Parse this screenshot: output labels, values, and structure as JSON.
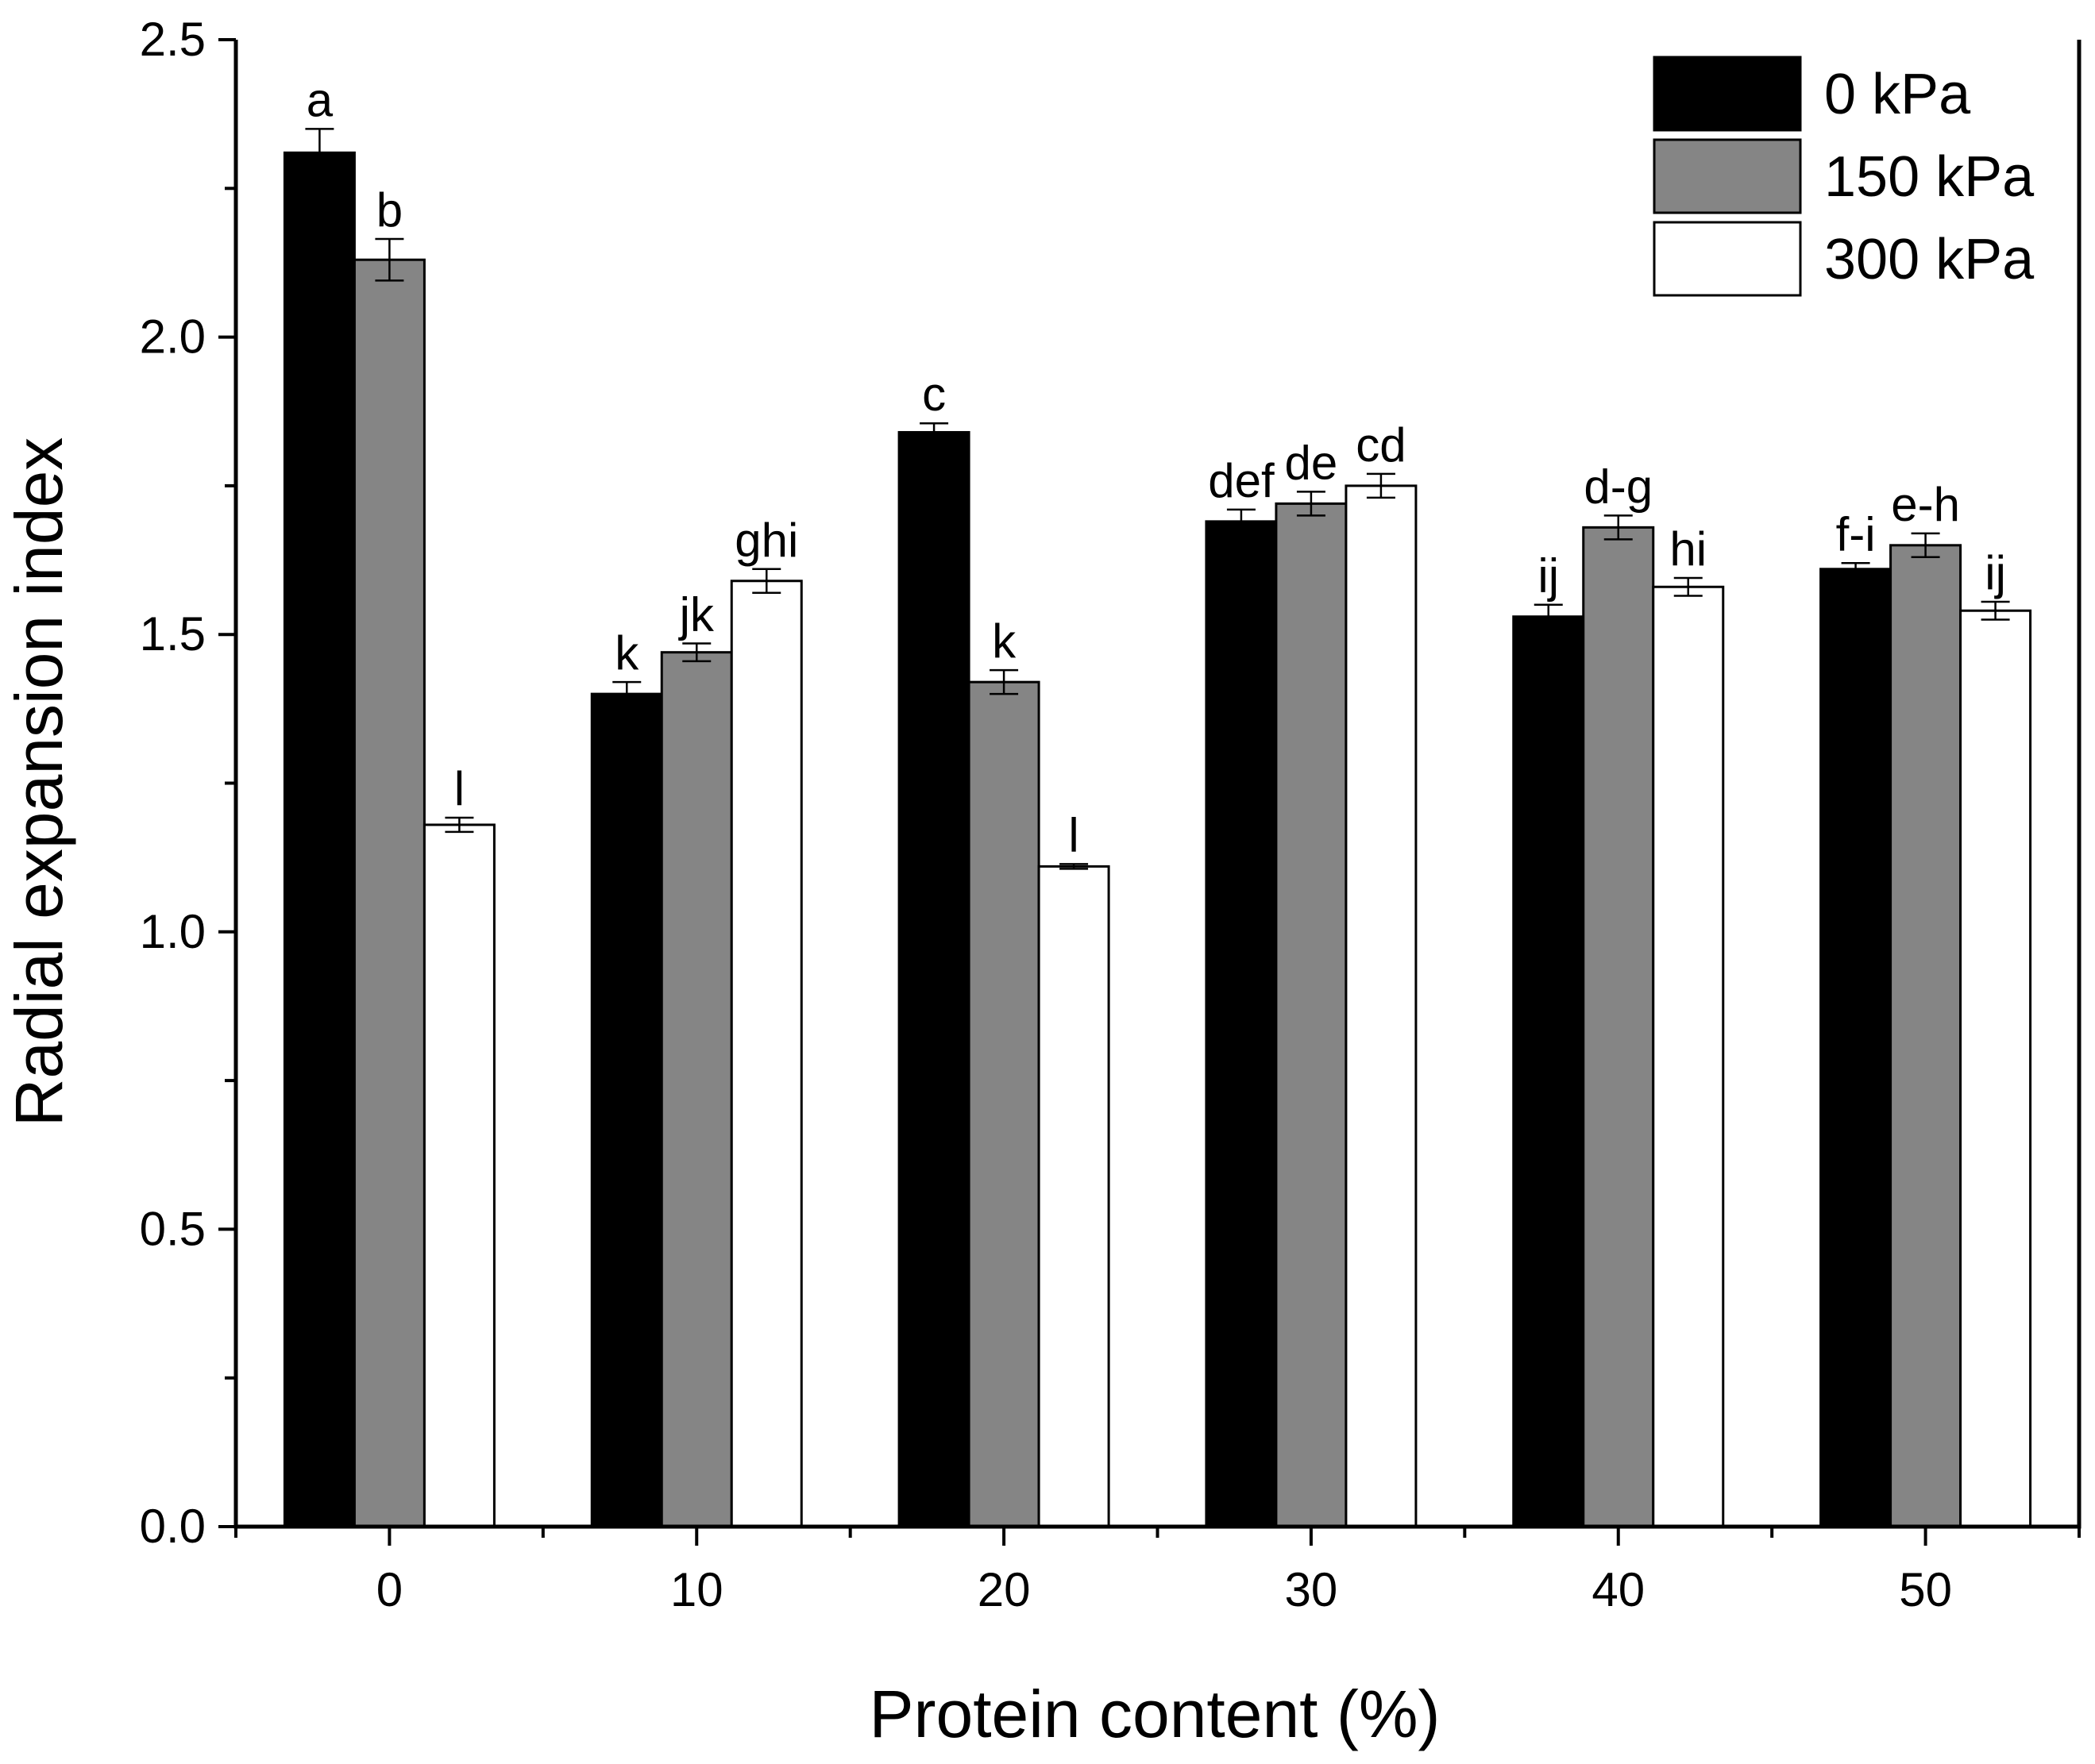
{
  "chart_data": {
    "type": "bar",
    "xlabel": "Protein content (%)",
    "ylabel": "Radial expansion index",
    "categories": [
      "0",
      "10",
      "20",
      "30",
      "40",
      "50"
    ],
    "ylim": [
      0,
      2.5
    ],
    "yticks": [
      "0.0",
      "0.5",
      "1.0",
      "1.5",
      "2.0",
      "2.5"
    ],
    "legend_position": "top-right",
    "series": [
      {
        "name": "0 kPa",
        "color": "#000000",
        "values": [
          2.31,
          1.4,
          1.84,
          1.69,
          1.53,
          1.61
        ],
        "errors": [
          0.04,
          0.02,
          0.015,
          0.02,
          0.02,
          0.01
        ],
        "labels": [
          "a",
          "k",
          "c",
          "def",
          "ij",
          "f-i"
        ]
      },
      {
        "name": "150 kPa",
        "color": "#858585",
        "values": [
          2.13,
          1.47,
          1.42,
          1.72,
          1.68,
          1.65
        ],
        "errors": [
          0.035,
          0.015,
          0.02,
          0.02,
          0.02,
          0.02
        ],
        "labels": [
          "b",
          "jk",
          "k",
          "de",
          "d-g",
          "e-h"
        ]
      },
      {
        "name": "300 kPa",
        "color": "#ffffff",
        "values": [
          1.18,
          1.59,
          1.11,
          1.75,
          1.58,
          1.54
        ],
        "errors": [
          0.012,
          0.02,
          0.004,
          0.02,
          0.015,
          0.015
        ],
        "labels": [
          "l",
          "ghi",
          "l",
          "cd",
          "hi",
          "ij"
        ]
      }
    ]
  }
}
